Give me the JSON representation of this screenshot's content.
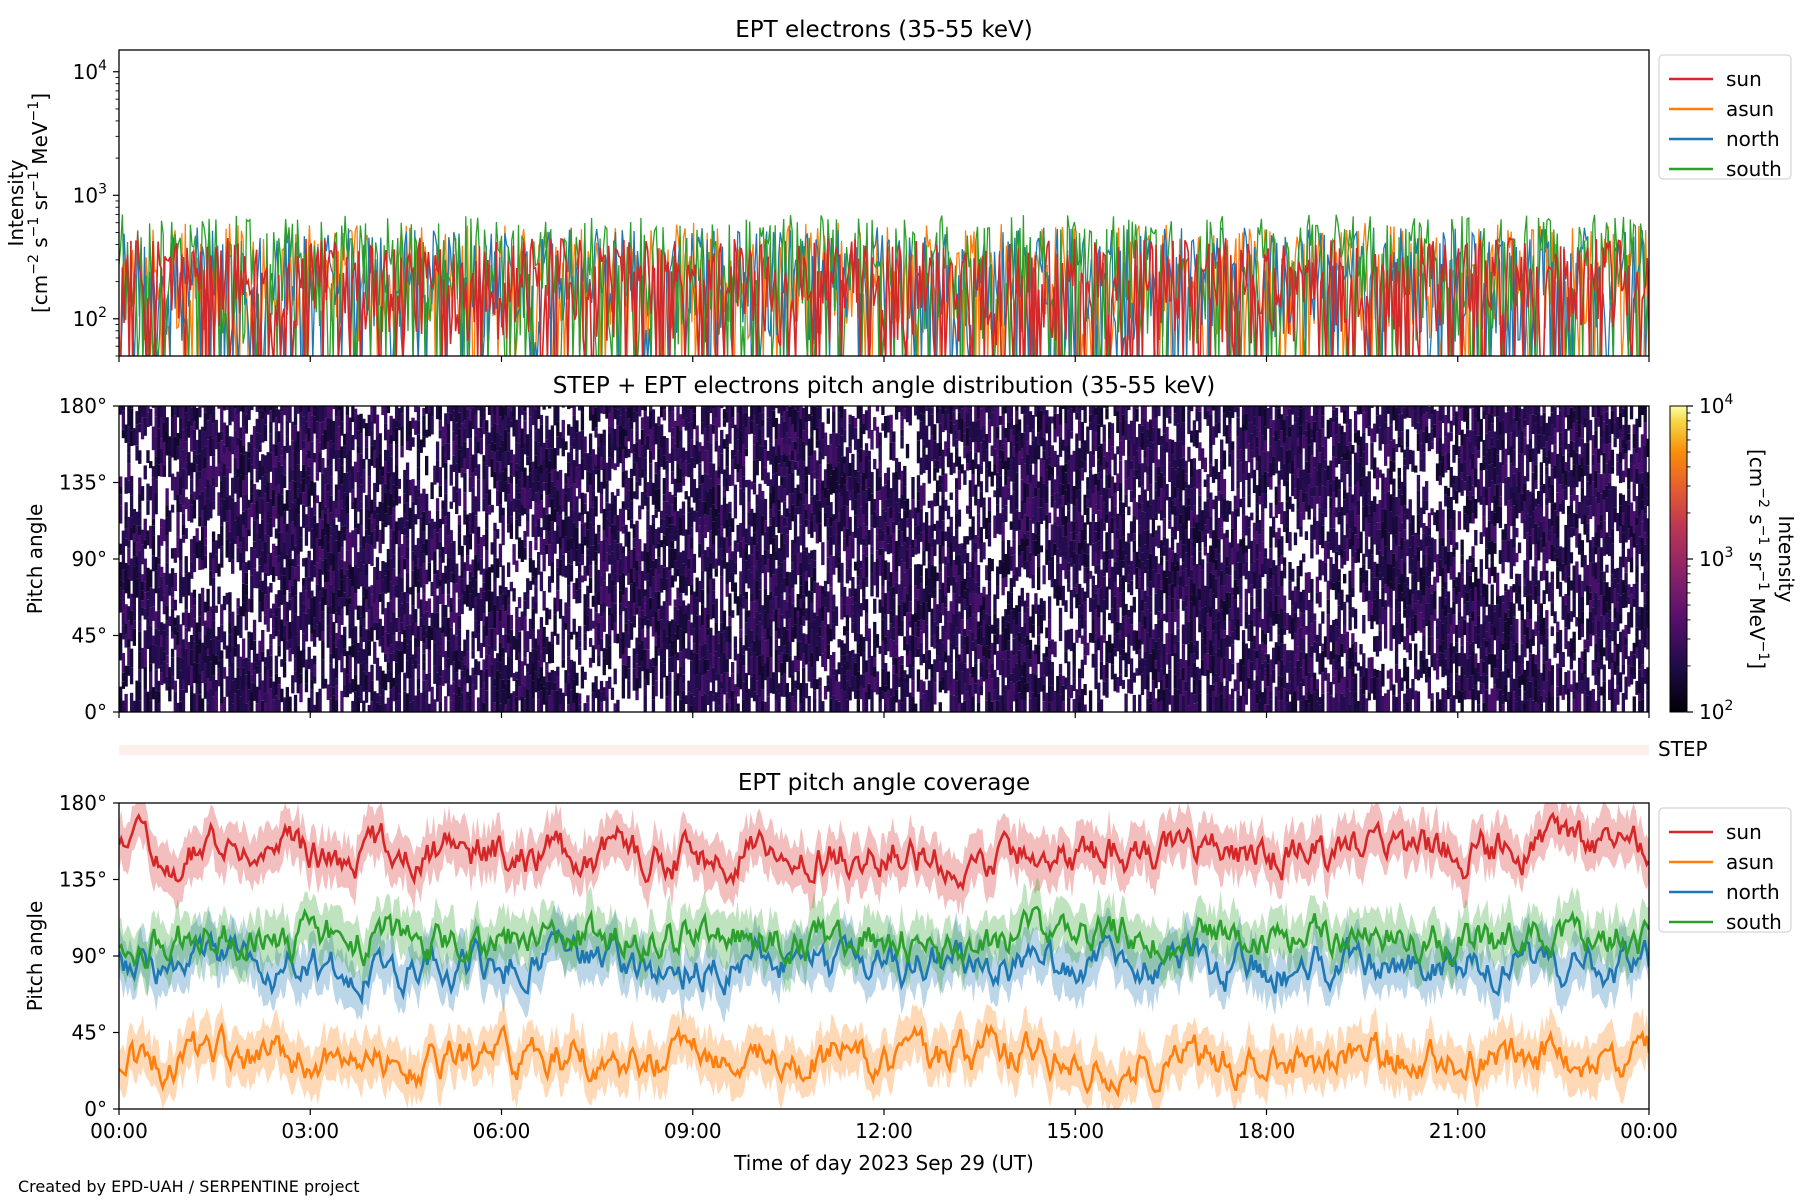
{
  "footer": "Created by EPD-UAH / SERPENTINE project",
  "xlabel": "Time of day 2023 Sep 29 (UT)",
  "xticks": [
    "00:00",
    "03:00",
    "06:00",
    "09:00",
    "12:00",
    "15:00",
    "18:00",
    "21:00",
    "00:00"
  ],
  "series_colors": {
    "sun": "#d62728",
    "asun": "#ff7f0e",
    "north": "#1f77b4",
    "south": "#2ca02c"
  },
  "chart_data": [
    {
      "type": "line",
      "title": "EPT electrons (35-55 keV)",
      "ylabel": [
        "Intensity",
        "[cm",
        "−2",
        " s",
        "−1",
        " sr",
        "−1",
        " MeV",
        "−1",
        "]"
      ],
      "yscale": "log",
      "ylim": [
        50,
        15000
      ],
      "yticks": [
        {
          "value": 100,
          "base": "10",
          "exp": "2"
        },
        {
          "value": 1000,
          "base": "10",
          "exp": "3"
        },
        {
          "value": 10000,
          "base": "10",
          "exp": "4"
        }
      ],
      "xlim_hours": [
        0,
        24
      ],
      "series": [
        {
          "name": "sun",
          "typical_range": [
            60,
            450
          ]
        },
        {
          "name": "asun",
          "typical_range": [
            60,
            600
          ]
        },
        {
          "name": "north",
          "typical_range": [
            60,
            550
          ]
        },
        {
          "name": "south",
          "typical_range": [
            60,
            700
          ]
        }
      ],
      "legend": [
        "sun",
        "asun",
        "north",
        "south"
      ],
      "legend_position": "outside-right-top"
    },
    {
      "type": "heatmap",
      "title": "STEP + EPT electrons pitch angle distribution (35-55 keV)",
      "ylabel": "Pitch angle",
      "ylim": [
        0,
        180
      ],
      "yticks": [
        "0°",
        "45°",
        "90°",
        "135°",
        "180°"
      ],
      "colorbar": {
        "scale": "log",
        "range": [
          100,
          10000
        ],
        "ticks": [
          {
            "base": "10",
            "exp": "2"
          },
          {
            "base": "10",
            "exp": "3"
          },
          {
            "base": "10",
            "exp": "4"
          }
        ],
        "label": [
          "Intensity",
          "[cm",
          "−2",
          " s",
          "−1",
          " sr",
          "−1",
          " MeV",
          "−1",
          "]"
        ],
        "colormap": "inferno"
      }
    },
    {
      "type": "heatmap",
      "label": "STEP",
      "description_color": "#fdf0ec"
    },
    {
      "type": "line",
      "title": "EPT pitch angle coverage",
      "ylabel": "Pitch angle",
      "ylim": [
        0,
        180
      ],
      "yticks": [
        "0°",
        "45°",
        "90°",
        "135°",
        "180°"
      ],
      "series": [
        {
          "name": "sun",
          "approx_mean": 150
        },
        {
          "name": "asun",
          "approx_mean": 30
        },
        {
          "name": "north",
          "approx_mean": 85
        },
        {
          "name": "south",
          "approx_mean": 100
        }
      ],
      "legend": [
        "sun",
        "asun",
        "north",
        "south"
      ],
      "legend_position": "outside-right-top"
    }
  ]
}
